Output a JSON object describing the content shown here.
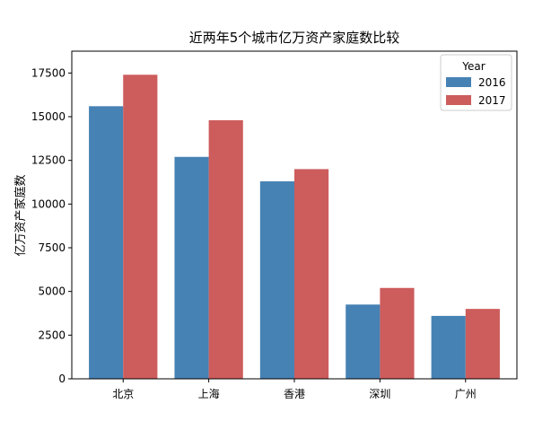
{
  "chart_data": {
    "type": "bar",
    "title": "近两年5个城市亿万资产家庭数比较",
    "xlabel": "",
    "ylabel": "亿万资产家庭数",
    "categories": [
      "北京",
      "上海",
      "香港",
      "深圳",
      "广州"
    ],
    "series": [
      {
        "name": "2016",
        "color": "#4682b4",
        "values": [
          15600,
          12700,
          11300,
          4250,
          3600
        ]
      },
      {
        "name": "2017",
        "color": "#cd5c5c",
        "values": [
          17400,
          14800,
          12000,
          5200,
          4000
        ]
      }
    ],
    "ylim": [
      0,
      18750
    ],
    "yticks": [
      0,
      2500,
      5000,
      7500,
      10000,
      12500,
      15000,
      17500
    ],
    "grid": false,
    "legend": {
      "title": "Year",
      "position": "top-right"
    }
  }
}
